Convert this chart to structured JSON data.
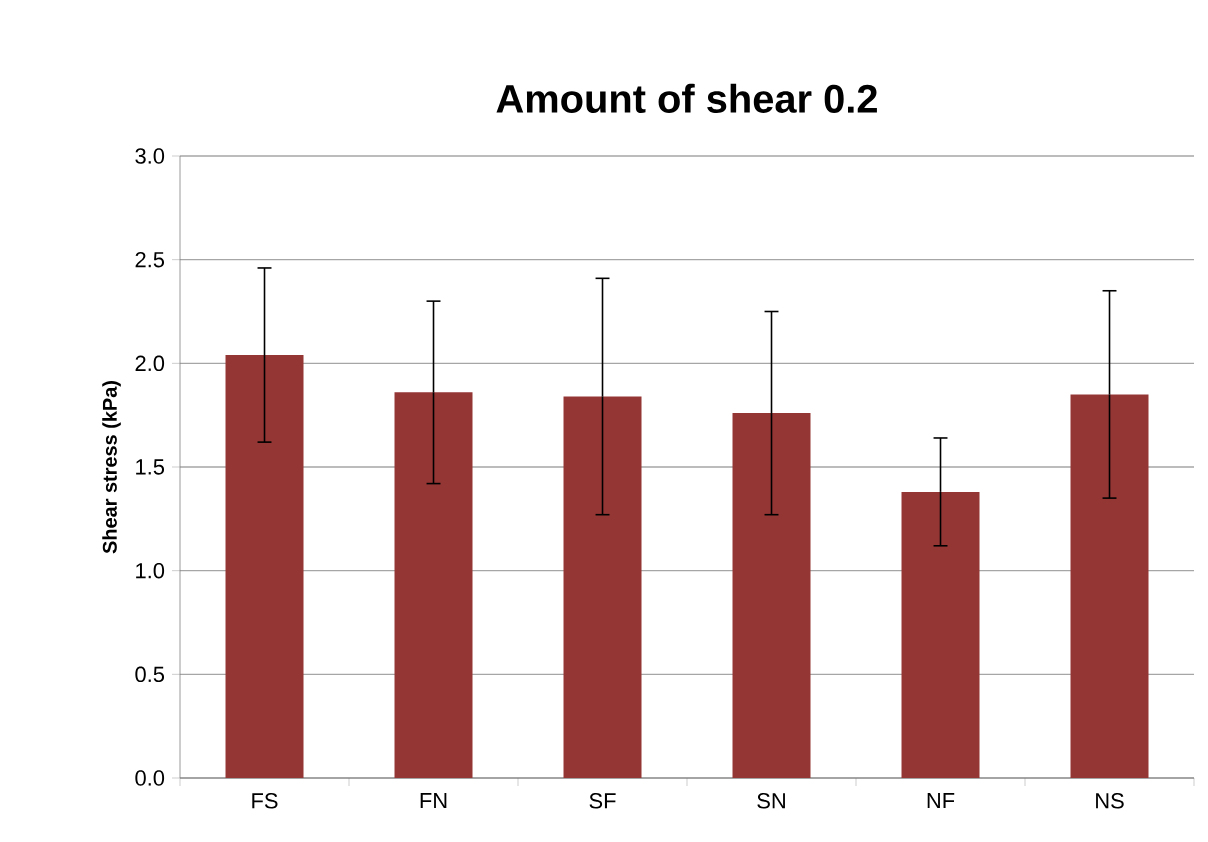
{
  "chart_data": {
    "type": "bar",
    "title": "Amount of shear 0.2",
    "ylabel": "Shear stress (kPa)",
    "categories": [
      "FS",
      "FN",
      "SF",
      "SN",
      "NF",
      "NS"
    ],
    "values": [
      2.04,
      1.86,
      1.84,
      1.76,
      1.38,
      1.85
    ],
    "errors": [
      0.42,
      0.44,
      0.57,
      0.49,
      0.26,
      0.5
    ],
    "color": "#943634",
    "ylim": [
      0,
      3
    ],
    "yticks": [
      {
        "value": 0,
        "label": "0.0"
      },
      {
        "value": 0.5,
        "label": "0.5"
      },
      {
        "value": 1,
        "label": "1.0"
      },
      {
        "value": 1.5,
        "label": "1.5"
      },
      {
        "value": 2,
        "label": "2.0"
      },
      {
        "value": 2.5,
        "label": "2.5"
      },
      {
        "value": 3,
        "label": "3.0"
      }
    ],
    "grid": "y"
  }
}
